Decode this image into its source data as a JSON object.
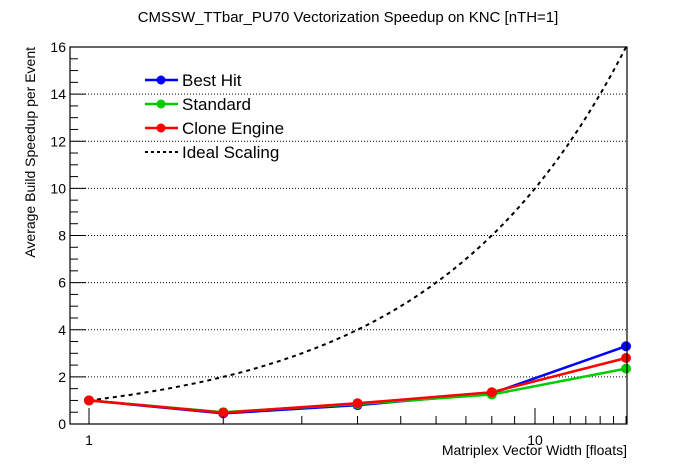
{
  "chart_data": {
    "type": "line",
    "title": "CMSSW_TTbar_PU70 Vectorization Speedup on KNC [nTH=1]",
    "xlabel": "Matriplex Vector Width [floats]",
    "ylabel": "Average Build Speedup per Event",
    "xscale": "log",
    "xlim": [
      0.96,
      16
    ],
    "ylim": [
      0,
      16
    ],
    "x_tick_labels": [
      "1",
      "10"
    ],
    "y_tick_labels": [
      "0",
      "2",
      "4",
      "6",
      "8",
      "10",
      "12",
      "14",
      "16"
    ],
    "grid": "horizontal dotted",
    "legend_position": "top-left",
    "x": [
      1,
      2,
      4,
      8,
      16
    ],
    "series": [
      {
        "name": "Best Hit",
        "color": "#0000ff",
        "style": "solid",
        "markers": true,
        "values": [
          1.0,
          0.45,
          0.8,
          1.3,
          3.3
        ]
      },
      {
        "name": "Standard",
        "color": "#00cc00",
        "style": "solid",
        "markers": true,
        "values": [
          1.0,
          0.5,
          0.85,
          1.25,
          2.35
        ]
      },
      {
        "name": "Clone Engine",
        "color": "#ff0000",
        "style": "solid",
        "markers": true,
        "values": [
          1.0,
          0.48,
          0.88,
          1.35,
          2.8
        ]
      },
      {
        "name": "Ideal Scaling",
        "color": "#000000",
        "style": "dashed",
        "markers": false,
        "values": [
          1,
          2,
          4,
          8,
          16
        ]
      }
    ]
  }
}
